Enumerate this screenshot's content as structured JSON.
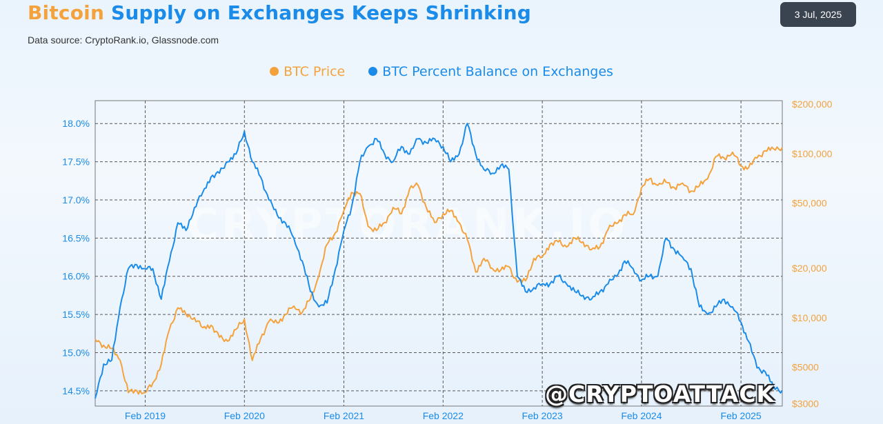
{
  "header": {
    "title_part1": "Bitcoin",
    "title_part2": "Supply on Exchanges Keeps Shrinking",
    "source": "Data source: CryptoRank.io, Glassnode.com",
    "date": "3 Jul, 2025"
  },
  "watermarks": {
    "brand": "@CRYPTOATTACK",
    "background": "CRYPTORANK.IO"
  },
  "colors": {
    "price": "#f4a23c",
    "balance": "#1a8be9",
    "grid": "#555555",
    "background": "#eaf4fd"
  },
  "chart_data": {
    "type": "line",
    "title": "Bitcoin Supply on Exchanges Keeps Shrinking",
    "legend_position": "top-center",
    "grid": true,
    "x_axis": {
      "type": "date",
      "range": [
        "2018-08-01",
        "2025-07-03"
      ],
      "ticks": [
        {
          "label": "Feb 2019",
          "date": "2019-02-01"
        },
        {
          "label": "Feb 2020",
          "date": "2020-02-01"
        },
        {
          "label": "Feb 2021",
          "date": "2021-02-01"
        },
        {
          "label": "Feb 2022",
          "date": "2022-02-01"
        },
        {
          "label": "Feb 2023",
          "date": "2023-02-01"
        },
        {
          "label": "Feb 2024",
          "date": "2024-02-01"
        },
        {
          "label": "Feb 2025",
          "date": "2025-02-01"
        }
      ]
    },
    "y_left": {
      "range": [
        14.3,
        18.3
      ],
      "ticks": [
        {
          "label": "14.5%",
          "value": 14.5
        },
        {
          "label": "15.0%",
          "value": 15.0
        },
        {
          "label": "15.5%",
          "value": 15.5
        },
        {
          "label": "16.0%",
          "value": 16.0
        },
        {
          "label": "16.5%",
          "value": 16.5
        },
        {
          "label": "17.0%",
          "value": 17.0
        },
        {
          "label": "17.5%",
          "value": 17.5
        },
        {
          "label": "18.0%",
          "value": 18.0
        }
      ]
    },
    "y_right": {
      "scale": "log",
      "range": [
        2900,
        210000
      ],
      "ticks": [
        {
          "label": "$3000",
          "value": 3000
        },
        {
          "label": "$5000",
          "value": 5000
        },
        {
          "label": "$10,000",
          "value": 10000
        },
        {
          "label": "$20,000",
          "value": 20000
        },
        {
          "label": "$50,000",
          "value": 50000
        },
        {
          "label": "$100,000",
          "value": 100000
        },
        {
          "label": "$200,000",
          "value": 200000
        }
      ]
    },
    "series": [
      {
        "name": "BTC Price",
        "axis": "right",
        "color": "#f4a23c",
        "points": [
          [
            "2018-08-01",
            7400
          ],
          [
            "2018-09-01",
            6800
          ],
          [
            "2018-10-01",
            6500
          ],
          [
            "2018-11-01",
            5500
          ],
          [
            "2018-12-01",
            3500
          ],
          [
            "2019-01-01",
            3600
          ],
          [
            "2019-02-01",
            3500
          ],
          [
            "2019-03-01",
            4000
          ],
          [
            "2019-04-01",
            5200
          ],
          [
            "2019-05-01",
            8500
          ],
          [
            "2019-06-01",
            11500
          ],
          [
            "2019-07-01",
            10500
          ],
          [
            "2019-08-01",
            10000
          ],
          [
            "2019-09-01",
            8700
          ],
          [
            "2019-10-01",
            9000
          ],
          [
            "2019-11-01",
            7600
          ],
          [
            "2019-12-01",
            7200
          ],
          [
            "2020-01-01",
            8500
          ],
          [
            "2020-02-01",
            9800
          ],
          [
            "2020-03-01",
            5500
          ],
          [
            "2020-04-01",
            7500
          ],
          [
            "2020-05-01",
            9500
          ],
          [
            "2020-06-01",
            9300
          ],
          [
            "2020-07-01",
            10500
          ],
          [
            "2020-08-01",
            11800
          ],
          [
            "2020-09-01",
            10800
          ],
          [
            "2020-10-01",
            13000
          ],
          [
            "2020-11-01",
            18000
          ],
          [
            "2020-12-01",
            28000
          ],
          [
            "2021-01-01",
            33000
          ],
          [
            "2021-02-01",
            45000
          ],
          [
            "2021-03-01",
            58000
          ],
          [
            "2021-04-01",
            57000
          ],
          [
            "2021-05-01",
            36000
          ],
          [
            "2021-06-01",
            34000
          ],
          [
            "2021-07-01",
            38000
          ],
          [
            "2021-08-01",
            47000
          ],
          [
            "2021-09-01",
            43000
          ],
          [
            "2021-10-01",
            61000
          ],
          [
            "2021-11-01",
            64000
          ],
          [
            "2021-12-01",
            47000
          ],
          [
            "2022-01-01",
            38000
          ],
          [
            "2022-02-01",
            43000
          ],
          [
            "2022-03-01",
            45000
          ],
          [
            "2022-04-01",
            38000
          ],
          [
            "2022-05-01",
            30000
          ],
          [
            "2022-06-01",
            19000
          ],
          [
            "2022-07-01",
            23000
          ],
          [
            "2022-08-01",
            20000
          ],
          [
            "2022-09-01",
            19500
          ],
          [
            "2022-10-01",
            20500
          ],
          [
            "2022-11-01",
            16500
          ],
          [
            "2022-12-01",
            16800
          ],
          [
            "2023-01-01",
            23000
          ],
          [
            "2023-02-01",
            23500
          ],
          [
            "2023-03-01",
            28000
          ],
          [
            "2023-04-01",
            29000
          ],
          [
            "2023-05-01",
            27000
          ],
          [
            "2023-06-01",
            30500
          ],
          [
            "2023-07-01",
            29000
          ],
          [
            "2023-08-01",
            26000
          ],
          [
            "2023-09-01",
            27000
          ],
          [
            "2023-10-01",
            34500
          ],
          [
            "2023-11-01",
            37500
          ],
          [
            "2023-12-01",
            42500
          ],
          [
            "2024-01-01",
            42500
          ],
          [
            "2024-02-01",
            62000
          ],
          [
            "2024-03-01",
            70000
          ],
          [
            "2024-04-01",
            64000
          ],
          [
            "2024-05-01",
            67000
          ],
          [
            "2024-06-01",
            62000
          ],
          [
            "2024-07-01",
            66000
          ],
          [
            "2024-08-01",
            59000
          ],
          [
            "2024-09-01",
            63500
          ],
          [
            "2024-10-01",
            70000
          ],
          [
            "2024-11-01",
            96000
          ],
          [
            "2024-12-01",
            94000
          ],
          [
            "2025-01-01",
            102000
          ],
          [
            "2025-02-01",
            84000
          ],
          [
            "2025-03-01",
            82000
          ],
          [
            "2025-04-01",
            94000
          ],
          [
            "2025-05-01",
            104000
          ],
          [
            "2025-06-01",
            107000
          ],
          [
            "2025-07-03",
            109000
          ]
        ]
      },
      {
        "name": "BTC Percent Balance on Exchanges",
        "axis": "left",
        "color": "#1a8be9",
        "points": [
          [
            "2018-08-01",
            14.4
          ],
          [
            "2018-09-01",
            14.85
          ],
          [
            "2018-10-01",
            14.9
          ],
          [
            "2018-11-01",
            15.6
          ],
          [
            "2018-12-01",
            16.1
          ],
          [
            "2019-01-01",
            16.15
          ],
          [
            "2019-02-01",
            16.1
          ],
          [
            "2019-03-01",
            16.1
          ],
          [
            "2019-04-01",
            15.7
          ],
          [
            "2019-05-01",
            16.2
          ],
          [
            "2019-06-01",
            16.7
          ],
          [
            "2019-07-01",
            16.6
          ],
          [
            "2019-08-01",
            16.9
          ],
          [
            "2019-09-01",
            17.1
          ],
          [
            "2019-10-01",
            17.3
          ],
          [
            "2019-11-01",
            17.35
          ],
          [
            "2019-12-01",
            17.5
          ],
          [
            "2020-01-01",
            17.6
          ],
          [
            "2020-02-01",
            17.9
          ],
          [
            "2020-03-01",
            17.5
          ],
          [
            "2020-04-01",
            17.3
          ],
          [
            "2020-05-01",
            17.0
          ],
          [
            "2020-06-01",
            16.8
          ],
          [
            "2020-07-01",
            16.7
          ],
          [
            "2020-08-01",
            16.5
          ],
          [
            "2020-09-01",
            16.2
          ],
          [
            "2020-10-01",
            15.8
          ],
          [
            "2020-11-01",
            15.6
          ],
          [
            "2020-12-01",
            15.65
          ],
          [
            "2021-01-01",
            16.1
          ],
          [
            "2021-02-01",
            16.6
          ],
          [
            "2021-03-01",
            16.9
          ],
          [
            "2021-04-01",
            17.5
          ],
          [
            "2021-05-01",
            17.7
          ],
          [
            "2021-06-01",
            17.8
          ],
          [
            "2021-07-01",
            17.6
          ],
          [
            "2021-08-01",
            17.5
          ],
          [
            "2021-09-01",
            17.7
          ],
          [
            "2021-10-01",
            17.6
          ],
          [
            "2021-11-01",
            17.8
          ],
          [
            "2021-12-01",
            17.75
          ],
          [
            "2022-01-01",
            17.8
          ],
          [
            "2022-02-01",
            17.7
          ],
          [
            "2022-03-01",
            17.5
          ],
          [
            "2022-04-01",
            17.6
          ],
          [
            "2022-05-01",
            18.0
          ],
          [
            "2022-06-01",
            17.6
          ],
          [
            "2022-07-01",
            17.4
          ],
          [
            "2022-08-01",
            17.35
          ],
          [
            "2022-09-01",
            17.45
          ],
          [
            "2022-10-01",
            17.4
          ],
          [
            "2022-11-01",
            16.0
          ],
          [
            "2022-12-01",
            15.8
          ],
          [
            "2023-01-01",
            15.85
          ],
          [
            "2023-02-01",
            15.9
          ],
          [
            "2023-03-01",
            15.9
          ],
          [
            "2023-04-01",
            16.0
          ],
          [
            "2023-05-01",
            15.9
          ],
          [
            "2023-06-01",
            15.8
          ],
          [
            "2023-07-01",
            15.75
          ],
          [
            "2023-08-01",
            15.7
          ],
          [
            "2023-09-01",
            15.8
          ],
          [
            "2023-10-01",
            15.9
          ],
          [
            "2023-11-01",
            16.0
          ],
          [
            "2023-12-01",
            16.2
          ],
          [
            "2024-01-01",
            16.1
          ],
          [
            "2024-02-01",
            15.95
          ],
          [
            "2024-03-01",
            16.0
          ],
          [
            "2024-04-01",
            16.0
          ],
          [
            "2024-05-01",
            16.5
          ],
          [
            "2024-06-01",
            16.35
          ],
          [
            "2024-07-01",
            16.25
          ],
          [
            "2024-08-01",
            16.1
          ],
          [
            "2024-09-01",
            15.6
          ],
          [
            "2024-10-01",
            15.5
          ],
          [
            "2024-11-01",
            15.6
          ],
          [
            "2024-12-01",
            15.7
          ],
          [
            "2025-01-01",
            15.6
          ],
          [
            "2025-02-01",
            15.4
          ],
          [
            "2025-03-01",
            15.15
          ],
          [
            "2025-04-01",
            14.8
          ],
          [
            "2025-05-01",
            14.75
          ],
          [
            "2025-06-01",
            14.55
          ],
          [
            "2025-07-03",
            14.5
          ]
        ]
      }
    ]
  }
}
